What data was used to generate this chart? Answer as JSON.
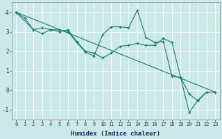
{
  "title": "",
  "xlabel": "Humidex (Indice chaleur)",
  "ylabel": "",
  "bg_color": "#cce9e9",
  "grid_color": "#ffffff",
  "line_color": "#1a7a6e",
  "xlim": [
    -0.5,
    23.5
  ],
  "ylim": [
    -1.5,
    4.5
  ],
  "yticks": [
    -1,
    0,
    1,
    2,
    3,
    4
  ],
  "xticks": [
    0,
    1,
    2,
    3,
    4,
    5,
    6,
    7,
    8,
    9,
    10,
    11,
    12,
    13,
    14,
    15,
    16,
    17,
    18,
    19,
    20,
    21,
    22,
    23
  ],
  "series": [
    {
      "x": [
        0,
        1,
        2,
        3,
        4,
        5,
        6,
        7,
        8,
        9,
        10,
        11,
        12,
        13,
        14,
        15,
        16,
        17,
        18,
        19,
        20,
        21,
        22,
        23
      ],
      "y": [
        4.0,
        3.7,
        3.1,
        3.2,
        3.1,
        3.1,
        3.0,
        2.45,
        1.95,
        1.75,
        2.85,
        3.25,
        3.25,
        3.2,
        4.1,
        2.7,
        2.45,
        2.5,
        0.7,
        0.65,
        -1.15,
        -0.5,
        -0.1,
        -0.1
      ]
    },
    {
      "x": [
        0,
        2,
        3,
        4,
        5,
        6,
        7,
        8,
        9,
        10,
        11,
        12,
        13,
        14,
        15,
        16,
        17,
        18,
        19,
        20,
        21,
        22,
        23
      ],
      "y": [
        4.0,
        3.1,
        2.9,
        3.1,
        3.0,
        3.1,
        2.5,
        2.0,
        1.9,
        1.65,
        1.9,
        2.25,
        2.3,
        2.4,
        2.3,
        2.3,
        2.65,
        2.45,
        0.65,
        -0.2,
        -0.55,
        -0.1,
        -0.1
      ]
    },
    {
      "x": [
        0,
        23
      ],
      "y": [
        4.0,
        -0.1
      ]
    }
  ]
}
